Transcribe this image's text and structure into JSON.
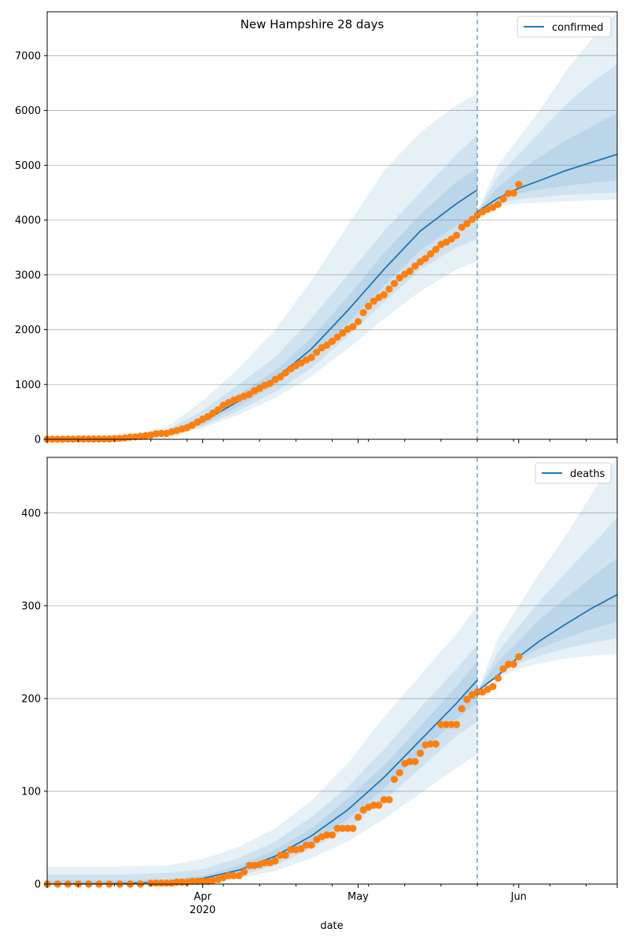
{
  "figure": {
    "title": "New Hampshire 28 days",
    "xlabel": "date"
  },
  "colors": {
    "model": "#1f77b4",
    "observed": "#ff7f0e",
    "grid": "#b0b0b0",
    "band": "#1f77b4"
  },
  "chart_data": [
    {
      "type": "line",
      "name": "confirmed",
      "legend": "confirmed",
      "legend_position": "top-right",
      "title": "New Hampshire 28 days",
      "xlim": [
        "2020-03-02",
        "2020-06-20"
      ],
      "ylim": [
        0,
        7800
      ],
      "yticks": [
        0,
        1000,
        2000,
        3000,
        4000,
        5000,
        6000,
        7000
      ],
      "grid_y": true,
      "forecast_start": "2020-05-24",
      "model": {
        "x": [
          "2020-03-02",
          "2020-03-10",
          "2020-03-18",
          "2020-03-25",
          "2020-04-01",
          "2020-04-08",
          "2020-04-15",
          "2020-04-22",
          "2020-04-29",
          "2020-05-06",
          "2020-05-13",
          "2020-05-20",
          "2020-05-24"
        ],
        "y": [
          0,
          2,
          20,
          100,
          320,
          700,
          1100,
          1650,
          2350,
          3100,
          3800,
          4300,
          4550
        ]
      },
      "forecast": {
        "x": [
          "2020-05-24",
          "2020-05-28",
          "2020-06-01",
          "2020-06-05",
          "2020-06-10",
          "2020-06-15",
          "2020-06-20"
        ],
        "y": [
          4150,
          4400,
          4580,
          4720,
          4900,
          5050,
          5200
        ]
      },
      "bands": [
        {
          "x": [
            "2020-03-02",
            "2020-03-18",
            "2020-03-25",
            "2020-04-01",
            "2020-04-08",
            "2020-04-15",
            "2020-04-22",
            "2020-04-29",
            "2020-05-06",
            "2020-05-13",
            "2020-05-20",
            "2020-05-24"
          ],
          "lower": [
            0,
            10,
            60,
            200,
            450,
            750,
            1150,
            1650,
            2200,
            2700,
            3100,
            3250
          ],
          "upper": [
            0,
            50,
            220,
            700,
            1300,
            2000,
            2900,
            3900,
            4900,
            5600,
            6100,
            6300
          ]
        },
        {
          "x": [
            "2020-03-02",
            "2020-03-18",
            "2020-03-25",
            "2020-04-01",
            "2020-04-08",
            "2020-04-15",
            "2020-04-22",
            "2020-04-29",
            "2020-05-06",
            "2020-05-13",
            "2020-05-20",
            "2020-05-24"
          ],
          "lower": [
            0,
            14,
            75,
            240,
            520,
            870,
            1300,
            1880,
            2500,
            3100,
            3500,
            3650
          ],
          "upper": [
            0,
            35,
            160,
            520,
            1000,
            1500,
            2200,
            3000,
            3800,
            4500,
            5200,
            5550
          ]
        },
        {
          "x": [
            "2020-03-02",
            "2020-03-18",
            "2020-03-25",
            "2020-04-01",
            "2020-04-08",
            "2020-04-15",
            "2020-04-22",
            "2020-04-29",
            "2020-05-06",
            "2020-05-13",
            "2020-05-20",
            "2020-05-24"
          ],
          "lower": [
            0,
            16,
            85,
            275,
            600,
            1000,
            1480,
            2120,
            2800,
            3450,
            3900,
            4050
          ],
          "upper": [
            0,
            28,
            130,
            400,
            820,
            1250,
            1850,
            2600,
            3400,
            4100,
            4700,
            4950
          ]
        },
        {
          "x": [
            "2020-05-24",
            "2020-05-28",
            "2020-06-01",
            "2020-06-05",
            "2020-06-10",
            "2020-06-15",
            "2020-06-20"
          ],
          "lower": [
            4150,
            4250,
            4300,
            4320,
            4340,
            4360,
            4370
          ],
          "upper": [
            4150,
            5000,
            5500,
            6000,
            6700,
            7300,
            7800
          ]
        },
        {
          "x": [
            "2020-05-24",
            "2020-05-28",
            "2020-06-01",
            "2020-06-05",
            "2020-06-10",
            "2020-06-15",
            "2020-06-20"
          ],
          "lower": [
            4150,
            4300,
            4380,
            4420,
            4460,
            4480,
            4500
          ],
          "upper": [
            4150,
            4800,
            5200,
            5600,
            6100,
            6500,
            6850
          ]
        },
        {
          "x": [
            "2020-05-24",
            "2020-05-28",
            "2020-06-01",
            "2020-06-05",
            "2020-06-10",
            "2020-06-15",
            "2020-06-20"
          ],
          "lower": [
            4150,
            4350,
            4480,
            4560,
            4620,
            4680,
            4720
          ],
          "upper": [
            4150,
            4600,
            4900,
            5150,
            5450,
            5700,
            5950
          ]
        }
      ],
      "observed": {
        "x": [
          "2020-03-02",
          "2020-03-03",
          "2020-03-04",
          "2020-03-05",
          "2020-03-06",
          "2020-03-07",
          "2020-03-08",
          "2020-03-09",
          "2020-03-10",
          "2020-03-11",
          "2020-03-12",
          "2020-03-13",
          "2020-03-14",
          "2020-03-15",
          "2020-03-16",
          "2020-03-17",
          "2020-03-18",
          "2020-03-19",
          "2020-03-20",
          "2020-03-21",
          "2020-03-22",
          "2020-03-23",
          "2020-03-24",
          "2020-03-25",
          "2020-03-26",
          "2020-03-27",
          "2020-03-28",
          "2020-03-29",
          "2020-03-30",
          "2020-03-31",
          "2020-04-01",
          "2020-04-02",
          "2020-04-03",
          "2020-04-04",
          "2020-04-05",
          "2020-04-06",
          "2020-04-07",
          "2020-04-08",
          "2020-04-09",
          "2020-04-10",
          "2020-04-11",
          "2020-04-12",
          "2020-04-13",
          "2020-04-14",
          "2020-04-15",
          "2020-04-16",
          "2020-04-17",
          "2020-04-18",
          "2020-04-19",
          "2020-04-20",
          "2020-04-21",
          "2020-04-22",
          "2020-04-23",
          "2020-04-24",
          "2020-04-25",
          "2020-04-26",
          "2020-04-27",
          "2020-04-28",
          "2020-04-29",
          "2020-04-30",
          "2020-05-01",
          "2020-05-02",
          "2020-05-03",
          "2020-05-04",
          "2020-05-05",
          "2020-05-06",
          "2020-05-07",
          "2020-05-08",
          "2020-05-09",
          "2020-05-10",
          "2020-05-11",
          "2020-05-12",
          "2020-05-13",
          "2020-05-14",
          "2020-05-15",
          "2020-05-16",
          "2020-05-17",
          "2020-05-18",
          "2020-05-19",
          "2020-05-20",
          "2020-05-21",
          "2020-05-22",
          "2020-05-23",
          "2020-05-24",
          "2020-05-25",
          "2020-05-26",
          "2020-05-27",
          "2020-05-28",
          "2020-05-29",
          "2020-05-30",
          "2020-05-31",
          "2020-06-01"
        ],
        "y": [
          2,
          2,
          2,
          2,
          4,
          4,
          5,
          5,
          5,
          5,
          6,
          6,
          7,
          13,
          17,
          26,
          39,
          44,
          55,
          65,
          78,
          101,
          108,
          108,
          137,
          158,
          187,
          214,
          258,
          314,
          367,
          415,
          479,
          540,
          621,
          669,
          715,
          747,
          788,
          819,
          885,
          929,
          985,
          1020,
          1091,
          1139,
          1211,
          1287,
          1342,
          1392,
          1447,
          1491,
          1588,
          1670,
          1720,
          1787,
          1864,
          1938,
          2010,
          2054,
          2146,
          2310,
          2429,
          2518,
          2588,
          2636,
          2740,
          2843,
          2947,
          3011,
          3071,
          3160,
          3239,
          3299,
          3382,
          3464,
          3556,
          3596,
          3652,
          3721,
          3868,
          3935,
          4014,
          4089,
          4149,
          4197,
          4231,
          4286,
          4386,
          4486,
          4492,
          4651
        ]
      }
    },
    {
      "type": "line",
      "name": "deaths",
      "legend": "deaths",
      "legend_position": "top-right",
      "xlabel": "date",
      "xlim": [
        "2020-03-02",
        "2020-06-20"
      ],
      "ylim": [
        0,
        460
      ],
      "yticks": [
        0,
        100,
        200,
        300,
        400
      ],
      "xticks": [
        {
          "date": "2020-04-01",
          "label": "Apr",
          "sublabel": "2020"
        },
        {
          "date": "2020-05-01",
          "label": "May",
          "sublabel": ""
        },
        {
          "date": "2020-06-01",
          "label": "Jun",
          "sublabel": ""
        }
      ],
      "grid_y": true,
      "forecast_start": "2020-05-24",
      "model": {
        "x": [
          "2020-03-02",
          "2020-03-15",
          "2020-03-25",
          "2020-04-01",
          "2020-04-08",
          "2020-04-15",
          "2020-04-22",
          "2020-04-29",
          "2020-05-06",
          "2020-05-13",
          "2020-05-20",
          "2020-05-24"
        ],
        "y": [
          0,
          0.5,
          2,
          6,
          15,
          30,
          52,
          80,
          115,
          155,
          195,
          220
        ]
      },
      "forecast": {
        "x": [
          "2020-05-24",
          "2020-05-28",
          "2020-06-01",
          "2020-06-05",
          "2020-06-10",
          "2020-06-15",
          "2020-06-20"
        ],
        "y": [
          208,
          225,
          245,
          262,
          280,
          297,
          312
        ]
      },
      "bands": [
        {
          "x": [
            "2020-03-02",
            "2020-03-15",
            "2020-03-25",
            "2020-04-01",
            "2020-04-08",
            "2020-04-15",
            "2020-04-22",
            "2020-04-29",
            "2020-05-06",
            "2020-05-13",
            "2020-05-20",
            "2020-05-24"
          ],
          "lower": [
            0,
            0,
            0,
            2,
            6,
            14,
            28,
            46,
            70,
            98,
            125,
            140
          ],
          "upper": [
            19,
            19,
            20,
            27,
            40,
            60,
            90,
            130,
            180,
            225,
            270,
            300
          ]
        },
        {
          "x": [
            "2020-03-02",
            "2020-03-15",
            "2020-03-25",
            "2020-04-01",
            "2020-04-08",
            "2020-04-15",
            "2020-04-22",
            "2020-04-29",
            "2020-05-06",
            "2020-05-13",
            "2020-05-20",
            "2020-05-24"
          ],
          "lower": [
            0,
            0,
            0,
            3,
            9,
            20,
            38,
            60,
            90,
            125,
            160,
            175
          ],
          "upper": [
            10,
            10,
            12,
            16,
            28,
            46,
            72,
            105,
            145,
            190,
            232,
            258
          ]
        },
        {
          "x": [
            "2020-03-02",
            "2020-03-15",
            "2020-03-25",
            "2020-04-01",
            "2020-04-08",
            "2020-04-15",
            "2020-04-22",
            "2020-04-29",
            "2020-05-06",
            "2020-05-13",
            "2020-05-20",
            "2020-05-24"
          ],
          "lower": [
            0,
            0,
            1,
            4,
            11,
            24,
            44,
            70,
            103,
            140,
            178,
            196
          ],
          "upper": [
            4,
            4,
            5,
            9,
            20,
            37,
            60,
            92,
            128,
            170,
            213,
            240
          ]
        },
        {
          "x": [
            "2020-05-24",
            "2020-05-28",
            "2020-06-01",
            "2020-06-05",
            "2020-06-10",
            "2020-06-15",
            "2020-06-20"
          ],
          "lower": [
            208,
            222,
            232,
            238,
            243,
            246,
            248
          ],
          "upper": [
            208,
            265,
            300,
            335,
            375,
            420,
            460
          ]
        },
        {
          "x": [
            "2020-05-24",
            "2020-05-28",
            "2020-06-01",
            "2020-06-05",
            "2020-06-10",
            "2020-06-15",
            "2020-06-20"
          ],
          "lower": [
            208,
            224,
            238,
            246,
            254,
            260,
            265
          ],
          "upper": [
            208,
            250,
            278,
            305,
            335,
            365,
            395
          ]
        },
        {
          "x": [
            "2020-05-24",
            "2020-05-28",
            "2020-06-01",
            "2020-06-05",
            "2020-06-10",
            "2020-06-15",
            "2020-06-20"
          ],
          "lower": [
            208,
            226,
            242,
            254,
            265,
            275,
            283
          ],
          "upper": [
            208,
            240,
            262,
            285,
            308,
            330,
            352
          ]
        }
      ],
      "observed": {
        "x": [
          "2020-03-02",
          "2020-03-04",
          "2020-03-06",
          "2020-03-08",
          "2020-03-10",
          "2020-03-12",
          "2020-03-14",
          "2020-03-16",
          "2020-03-18",
          "2020-03-20",
          "2020-03-22",
          "2020-03-23",
          "2020-03-24",
          "2020-03-25",
          "2020-03-26",
          "2020-03-27",
          "2020-03-28",
          "2020-03-29",
          "2020-03-30",
          "2020-03-31",
          "2020-04-01",
          "2020-04-02",
          "2020-04-03",
          "2020-04-04",
          "2020-04-05",
          "2020-04-06",
          "2020-04-07",
          "2020-04-08",
          "2020-04-09",
          "2020-04-10",
          "2020-04-11",
          "2020-04-12",
          "2020-04-13",
          "2020-04-14",
          "2020-04-15",
          "2020-04-16",
          "2020-04-17",
          "2020-04-18",
          "2020-04-19",
          "2020-04-20",
          "2020-04-21",
          "2020-04-22",
          "2020-04-23",
          "2020-04-24",
          "2020-04-25",
          "2020-04-26",
          "2020-04-27",
          "2020-04-28",
          "2020-04-29",
          "2020-04-30",
          "2020-05-01",
          "2020-05-02",
          "2020-05-03",
          "2020-05-04",
          "2020-05-05",
          "2020-05-06",
          "2020-05-07",
          "2020-05-08",
          "2020-05-09",
          "2020-05-10",
          "2020-05-11",
          "2020-05-12",
          "2020-05-13",
          "2020-05-14",
          "2020-05-15",
          "2020-05-16",
          "2020-05-17",
          "2020-05-18",
          "2020-05-19",
          "2020-05-20",
          "2020-05-21",
          "2020-05-22",
          "2020-05-23",
          "2020-05-24",
          "2020-05-25",
          "2020-05-26",
          "2020-05-27",
          "2020-05-28",
          "2020-05-29",
          "2020-05-30",
          "2020-05-31",
          "2020-06-01"
        ],
        "y": [
          0,
          0,
          0,
          0,
          0,
          0,
          0,
          0,
          0,
          0,
          1,
          1,
          1,
          1,
          1,
          2,
          2,
          2,
          3,
          3,
          3,
          3,
          4,
          5,
          7,
          9,
          9,
          9,
          13,
          20,
          20,
          21,
          23,
          23,
          25,
          31,
          31,
          37,
          37,
          38,
          42,
          42,
          48,
          51,
          53,
          53,
          60,
          60,
          60,
          60,
          72,
          80,
          83,
          85,
          85,
          91,
          91,
          113,
          120,
          130,
          132,
          132,
          141,
          150,
          151,
          151,
          172,
          172,
          172,
          172,
          189,
          199,
          204,
          207,
          207,
          210,
          213,
          222,
          232,
          237,
          237,
          245
        ]
      }
    }
  ]
}
